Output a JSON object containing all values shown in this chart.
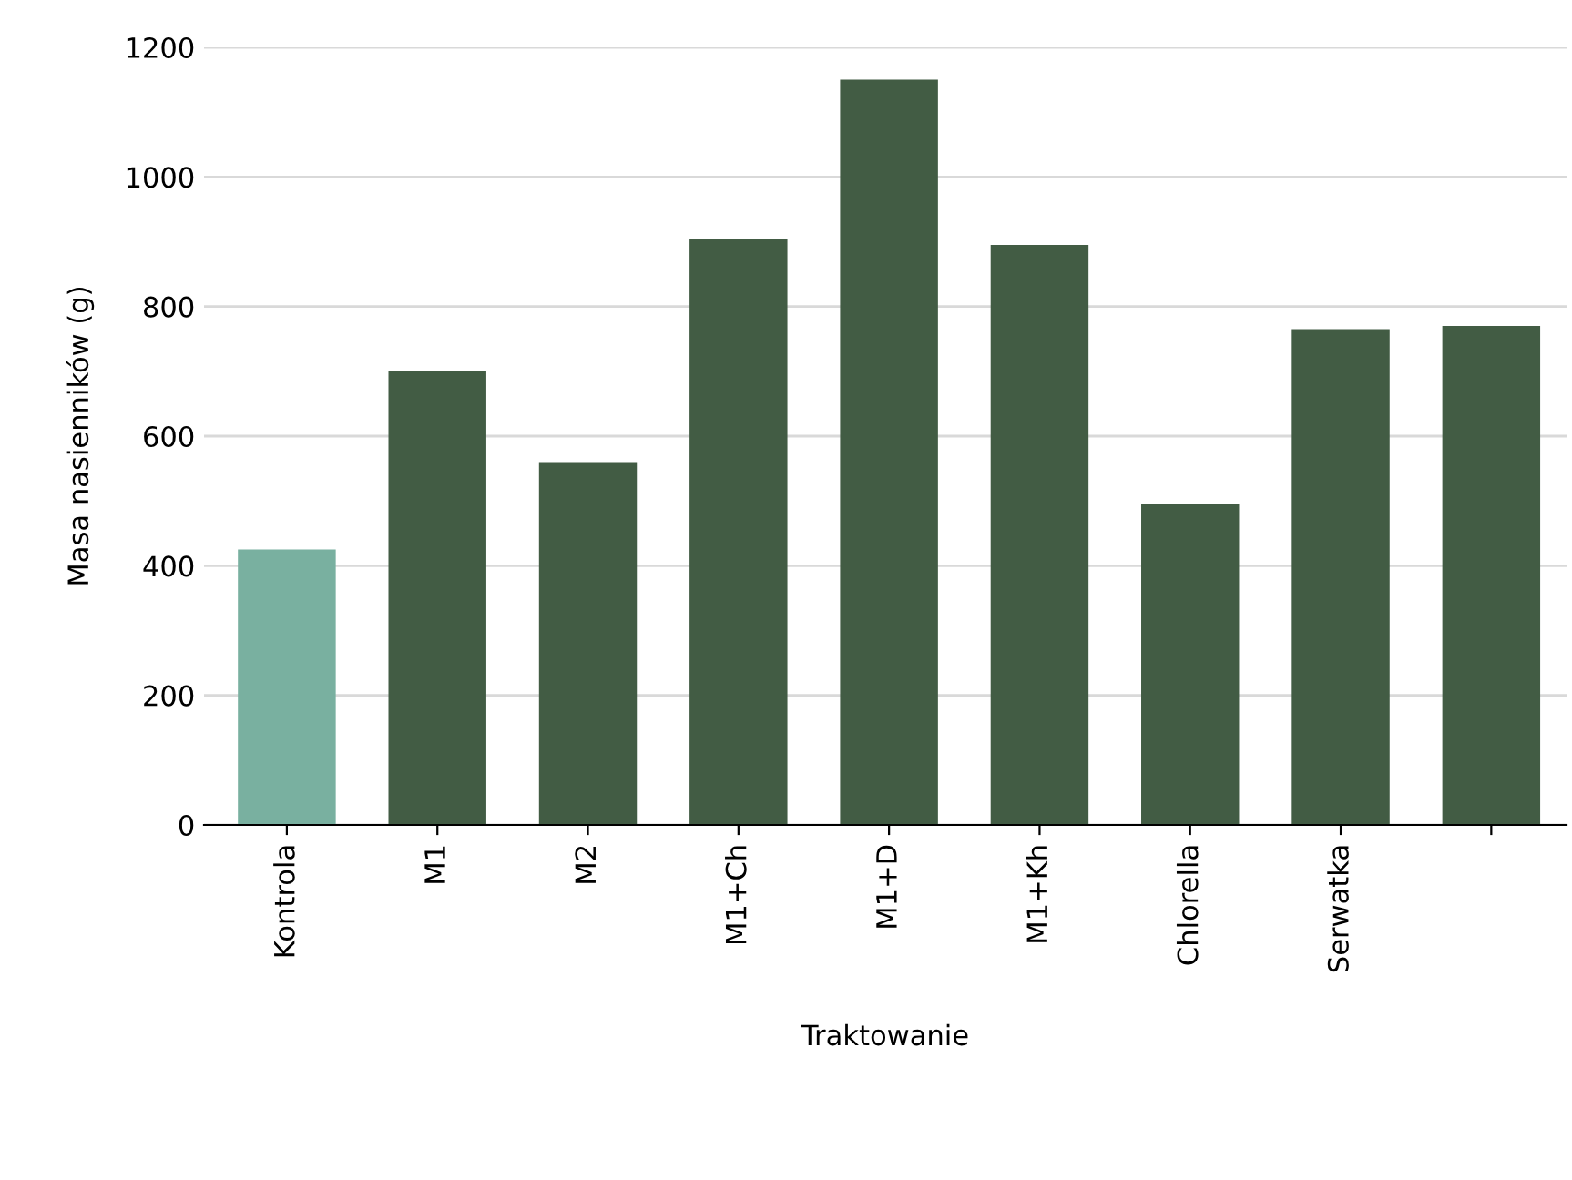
{
  "chart_data": {
    "type": "bar",
    "xlabel": "Traktowanie",
    "ylabel": "Masa nasienników (g)",
    "categories": [
      "Kontrola",
      "M1",
      "M2",
      "M1+Ch",
      "M1+D",
      "M1+Kh",
      "Chlorella",
      "Serwatka",
      null
    ],
    "values": [
      425,
      700,
      560,
      905,
      1150,
      895,
      495,
      765,
      770
    ],
    "colors": [
      "#79b0a0",
      "#425c44",
      "#425c44",
      "#425c44",
      "#425c44",
      "#425c44",
      "#425c44",
      "#425c44",
      "#425c44"
    ],
    "ylim": [
      0,
      1200
    ],
    "yticks": [
      0,
      200,
      400,
      600,
      800,
      1000,
      1200
    ],
    "grid": "y"
  }
}
